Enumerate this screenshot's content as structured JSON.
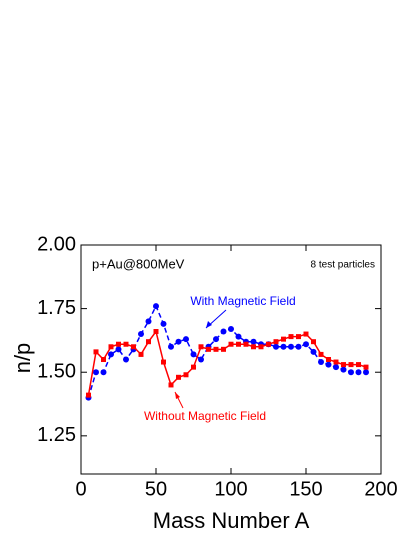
{
  "chart_data": {
    "type": "line",
    "x_label": "Mass Number A",
    "y_label": "n/p",
    "annotations": [
      "p+Au@800MeV",
      "8 test particles"
    ],
    "x": [
      5,
      10,
      15,
      20,
      25,
      30,
      35,
      40,
      45,
      50,
      55,
      60,
      65,
      70,
      75,
      80,
      85,
      90,
      95,
      100,
      105,
      110,
      115,
      120,
      125,
      130,
      135,
      140,
      145,
      150,
      155,
      160,
      165,
      170,
      175,
      180,
      185,
      190
    ],
    "series": [
      {
        "name": "With Magnetic Field",
        "color": "#0000ff",
        "dashed": true,
        "marker": "circle",
        "values": [
          1.4,
          1.5,
          1.5,
          1.57,
          1.59,
          1.55,
          1.59,
          1.65,
          1.7,
          1.76,
          1.69,
          1.6,
          1.62,
          1.63,
          1.57,
          1.55,
          1.6,
          1.63,
          1.66,
          1.67,
          1.64,
          1.62,
          1.62,
          1.61,
          1.61,
          1.6,
          1.6,
          1.6,
          1.6,
          1.61,
          1.58,
          1.54,
          1.53,
          1.52,
          1.51,
          1.5,
          1.5,
          1.5
        ]
      },
      {
        "name": "Without Magnetic Field",
        "color": "#ff0000",
        "dashed": false,
        "marker": "square",
        "values": [
          1.41,
          1.58,
          1.55,
          1.6,
          1.61,
          1.61,
          1.6,
          1.57,
          1.62,
          1.66,
          1.54,
          1.45,
          1.48,
          1.49,
          1.52,
          1.6,
          1.59,
          1.59,
          1.59,
          1.61,
          1.61,
          1.61,
          1.6,
          1.6,
          1.61,
          1.62,
          1.63,
          1.64,
          1.64,
          1.65,
          1.62,
          1.57,
          1.55,
          1.54,
          1.53,
          1.53,
          1.53,
          1.52
        ]
      }
    ],
    "xlim": [
      0,
      200
    ],
    "xticks": [
      0,
      50,
      100,
      150,
      200
    ],
    "ylim": [
      1.1,
      2.0
    ],
    "yticks": [
      {
        "value": 1.25,
        "label": "1.25"
      },
      {
        "value": 1.5,
        "label": "1.50"
      },
      {
        "value": 1.75,
        "label": "1.75"
      },
      {
        "value": 2.0,
        "label": "2.00"
      }
    ]
  }
}
